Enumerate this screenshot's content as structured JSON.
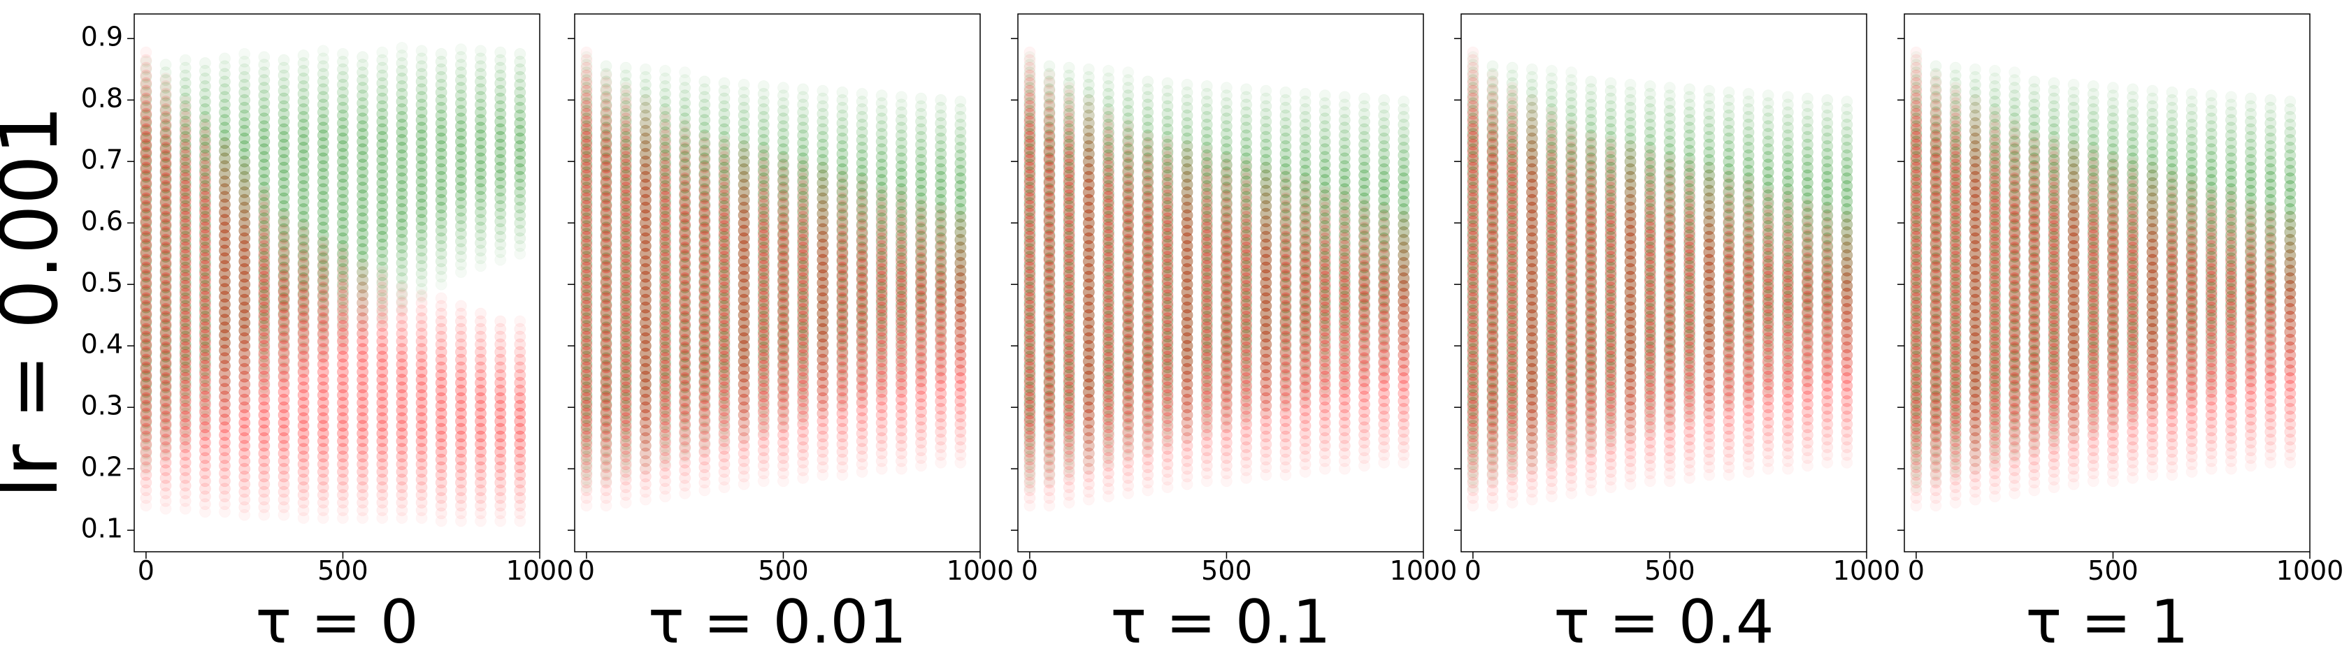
{
  "figure": {
    "row_label": "lr = 0.001",
    "point_colors": {
      "high": "#008000",
      "low": "#ff0000"
    }
  },
  "chart_data": [
    {
      "type": "scatter",
      "subplot_label": "τ = 0",
      "x": [
        0,
        50,
        100,
        150,
        200,
        250,
        300,
        350,
        400,
        450,
        500,
        550,
        600,
        650,
        700,
        750,
        800,
        850,
        900,
        950
      ],
      "xlim": [
        -30,
        1000
      ],
      "ylim": [
        0.065,
        0.94
      ],
      "xticks": [
        "0",
        "500",
        "1000"
      ],
      "yticks": [
        "0.1",
        "0.2",
        "0.3",
        "0.4",
        "0.5",
        "0.6",
        "0.7",
        "0.8",
        "0.9"
      ],
      "series": [
        {
          "color": "#008000",
          "low": [
            0.2,
            0.22,
            0.24,
            0.26,
            0.28,
            0.3,
            0.32,
            0.34,
            0.36,
            0.38,
            0.4,
            0.42,
            0.44,
            0.46,
            0.48,
            0.5,
            0.52,
            0.53,
            0.54,
            0.55
          ],
          "high": [
            0.87,
            0.865,
            0.87,
            0.87,
            0.875,
            0.875,
            0.875,
            0.875,
            0.88,
            0.88,
            0.88,
            0.88,
            0.88,
            0.885,
            0.885,
            0.885,
            0.885,
            0.885,
            0.885,
            0.885
          ]
        },
        {
          "color": "#ff0000",
          "low": [
            0.14,
            0.135,
            0.135,
            0.13,
            0.13,
            0.125,
            0.125,
            0.125,
            0.12,
            0.12,
            0.12,
            0.12,
            0.12,
            0.12,
            0.12,
            0.115,
            0.115,
            0.115,
            0.115,
            0.115
          ],
          "high": [
            0.88,
            0.84,
            0.8,
            0.77,
            0.74,
            0.7,
            0.66,
            0.62,
            0.6,
            0.58,
            0.56,
            0.54,
            0.52,
            0.5,
            0.49,
            0.48,
            0.47,
            0.46,
            0.45,
            0.44
          ]
        }
      ]
    },
    {
      "type": "scatter",
      "subplot_label": "τ = 0.01",
      "x": [
        0,
        50,
        100,
        150,
        200,
        250,
        300,
        350,
        400,
        450,
        500,
        550,
        600,
        650,
        700,
        750,
        800,
        850,
        900,
        950
      ],
      "xlim": [
        -30,
        1000
      ],
      "ylim": [
        0.065,
        0.94
      ],
      "xticks": [
        "0",
        "500",
        "1000"
      ],
      "series": [
        {
          "color": "#008000",
          "low": [
            0.17,
            0.18,
            0.19,
            0.2,
            0.21,
            0.22,
            0.23,
            0.24,
            0.25,
            0.26,
            0.27,
            0.28,
            0.29,
            0.3,
            0.31,
            0.32,
            0.33,
            0.34,
            0.35,
            0.36
          ],
          "high": [
            0.87,
            0.865,
            0.86,
            0.855,
            0.85,
            0.845,
            0.84,
            0.835,
            0.83,
            0.83,
            0.825,
            0.825,
            0.82,
            0.82,
            0.815,
            0.815,
            0.81,
            0.81,
            0.81,
            0.805
          ]
        },
        {
          "color": "#ff0000",
          "low": [
            0.14,
            0.14,
            0.145,
            0.15,
            0.155,
            0.16,
            0.165,
            0.17,
            0.175,
            0.18,
            0.18,
            0.185,
            0.19,
            0.19,
            0.195,
            0.2,
            0.2,
            0.205,
            0.21,
            0.21
          ],
          "high": [
            0.88,
            0.84,
            0.82,
            0.8,
            0.78,
            0.76,
            0.75,
            0.74,
            0.73,
            0.72,
            0.71,
            0.7,
            0.69,
            0.68,
            0.67,
            0.66,
            0.65,
            0.64,
            0.63,
            0.62
          ]
        }
      ]
    },
    {
      "type": "scatter",
      "subplot_label": "τ = 0.1",
      "x": [
        0,
        50,
        100,
        150,
        200,
        250,
        300,
        350,
        400,
        450,
        500,
        550,
        600,
        650,
        700,
        750,
        800,
        850,
        900,
        950
      ],
      "xlim": [
        -30,
        1000
      ],
      "ylim": [
        0.065,
        0.94
      ],
      "xticks": [
        "0",
        "500",
        "1000"
      ],
      "series": [
        {
          "color": "#008000",
          "low": [
            0.17,
            0.18,
            0.19,
            0.2,
            0.21,
            0.22,
            0.23,
            0.24,
            0.25,
            0.26,
            0.27,
            0.28,
            0.29,
            0.3,
            0.31,
            0.32,
            0.33,
            0.34,
            0.35,
            0.36
          ],
          "high": [
            0.87,
            0.865,
            0.86,
            0.855,
            0.85,
            0.845,
            0.84,
            0.835,
            0.83,
            0.83,
            0.825,
            0.825,
            0.82,
            0.82,
            0.815,
            0.815,
            0.81,
            0.81,
            0.81,
            0.805
          ]
        },
        {
          "color": "#ff0000",
          "low": [
            0.14,
            0.14,
            0.145,
            0.15,
            0.155,
            0.16,
            0.165,
            0.17,
            0.175,
            0.18,
            0.18,
            0.185,
            0.19,
            0.19,
            0.195,
            0.2,
            0.2,
            0.205,
            0.21,
            0.21
          ],
          "high": [
            0.88,
            0.84,
            0.82,
            0.8,
            0.78,
            0.76,
            0.75,
            0.74,
            0.73,
            0.72,
            0.71,
            0.7,
            0.69,
            0.68,
            0.67,
            0.66,
            0.65,
            0.64,
            0.63,
            0.62
          ]
        }
      ]
    },
    {
      "type": "scatter",
      "subplot_label": "τ = 0.4",
      "x": [
        0,
        50,
        100,
        150,
        200,
        250,
        300,
        350,
        400,
        450,
        500,
        550,
        600,
        650,
        700,
        750,
        800,
        850,
        900,
        950
      ],
      "xlim": [
        -30,
        1000
      ],
      "ylim": [
        0.065,
        0.94
      ],
      "xticks": [
        "0",
        "500",
        "1000"
      ],
      "series": [
        {
          "color": "#008000",
          "low": [
            0.17,
            0.18,
            0.19,
            0.2,
            0.21,
            0.22,
            0.23,
            0.24,
            0.25,
            0.26,
            0.27,
            0.28,
            0.29,
            0.3,
            0.31,
            0.32,
            0.33,
            0.34,
            0.35,
            0.36
          ],
          "high": [
            0.87,
            0.865,
            0.86,
            0.855,
            0.85,
            0.845,
            0.84,
            0.835,
            0.83,
            0.83,
            0.825,
            0.825,
            0.82,
            0.82,
            0.815,
            0.815,
            0.81,
            0.81,
            0.81,
            0.805
          ]
        },
        {
          "color": "#ff0000",
          "low": [
            0.14,
            0.14,
            0.145,
            0.15,
            0.155,
            0.16,
            0.165,
            0.17,
            0.175,
            0.18,
            0.18,
            0.185,
            0.19,
            0.19,
            0.195,
            0.2,
            0.2,
            0.205,
            0.21,
            0.21
          ],
          "high": [
            0.88,
            0.84,
            0.82,
            0.8,
            0.78,
            0.76,
            0.75,
            0.74,
            0.73,
            0.72,
            0.71,
            0.7,
            0.69,
            0.68,
            0.67,
            0.66,
            0.65,
            0.64,
            0.63,
            0.62
          ]
        }
      ]
    },
    {
      "type": "scatter",
      "subplot_label": "τ = 1",
      "x": [
        0,
        50,
        100,
        150,
        200,
        250,
        300,
        350,
        400,
        450,
        500,
        550,
        600,
        650,
        700,
        750,
        800,
        850,
        900,
        950
      ],
      "xlim": [
        -30,
        1000
      ],
      "ylim": [
        0.065,
        0.94
      ],
      "xticks": [
        "0",
        "500",
        "1000"
      ],
      "series": [
        {
          "color": "#008000",
          "low": [
            0.17,
            0.18,
            0.19,
            0.2,
            0.21,
            0.22,
            0.23,
            0.24,
            0.25,
            0.26,
            0.27,
            0.28,
            0.29,
            0.3,
            0.31,
            0.32,
            0.33,
            0.34,
            0.35,
            0.36
          ],
          "high": [
            0.87,
            0.865,
            0.86,
            0.855,
            0.85,
            0.845,
            0.84,
            0.835,
            0.83,
            0.83,
            0.825,
            0.825,
            0.82,
            0.82,
            0.815,
            0.815,
            0.81,
            0.81,
            0.81,
            0.805
          ]
        },
        {
          "color": "#ff0000",
          "low": [
            0.14,
            0.14,
            0.145,
            0.15,
            0.155,
            0.16,
            0.165,
            0.17,
            0.175,
            0.18,
            0.18,
            0.185,
            0.19,
            0.19,
            0.195,
            0.2,
            0.2,
            0.205,
            0.21,
            0.21
          ],
          "high": [
            0.88,
            0.84,
            0.82,
            0.8,
            0.78,
            0.76,
            0.75,
            0.74,
            0.73,
            0.72,
            0.71,
            0.7,
            0.69,
            0.68,
            0.67,
            0.66,
            0.65,
            0.64,
            0.63,
            0.62
          ]
        }
      ]
    }
  ]
}
